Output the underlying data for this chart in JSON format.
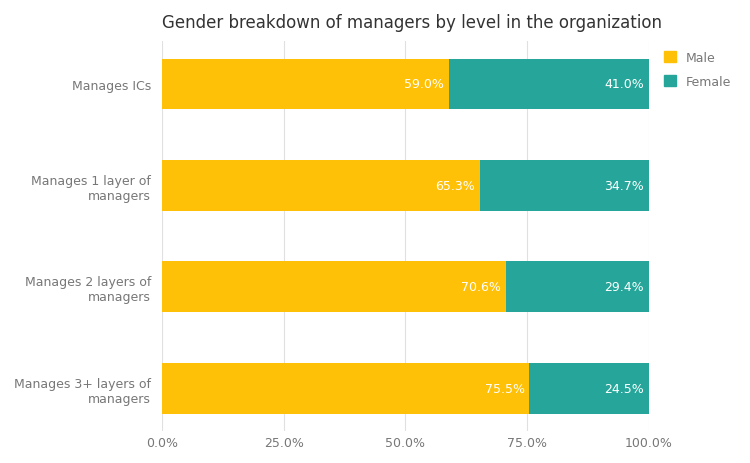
{
  "title": "Gender breakdown of managers by level in the organization",
  "categories": [
    "Manages ICs",
    "Manages 1 layer of\nmanagers",
    "Manages 2 layers of\nmanagers",
    "Manages 3+ layers of\nmanagers"
  ],
  "male_values": [
    59.0,
    65.3,
    70.6,
    75.5
  ],
  "female_values": [
    41.0,
    34.7,
    29.4,
    24.5
  ],
  "male_color": "#FFC107",
  "female_color": "#26A69A",
  "xlim": [
    0,
    100
  ],
  "xticks": [
    0,
    25,
    50,
    75,
    100
  ],
  "xtick_labels": [
    "0.0%",
    "25.0%",
    "50.0%",
    "75.0%",
    "100.0%"
  ],
  "bar_height": 0.5,
  "background_color": "#ffffff",
  "title_fontsize": 12,
  "label_fontsize": 9,
  "tick_fontsize": 9,
  "legend_labels": [
    "Male",
    "Female"
  ],
  "text_color": "#ffffff",
  "ytick_color": "#777777",
  "xtick_color": "#777777",
  "grid_color": "#e0e0e0",
  "title_color": "#333333"
}
